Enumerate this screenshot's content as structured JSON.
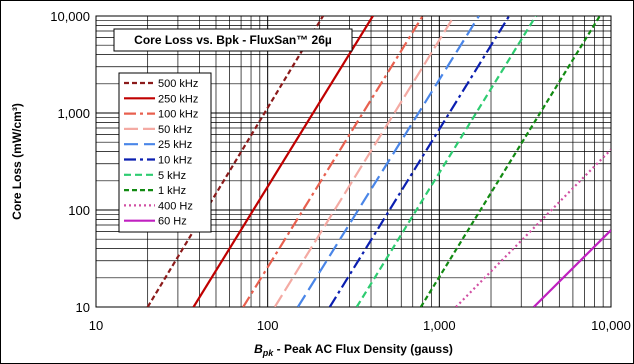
{
  "chart_data": {
    "type": "line",
    "title": "Core Loss vs. Bpk - FluxSan™ 26µ",
    "xlabel_main": "B",
    "xlabel_sub": "pk",
    "xlabel_rest": " - Peak AC Flux Density (gauss)",
    "ylabel": "Core Loss (mW/cm³)",
    "x_scale": "log",
    "y_scale": "log",
    "xlim": [
      10,
      10000
    ],
    "ylim": [
      10,
      10000
    ],
    "x_ticks": [
      "10",
      "100",
      "1,000",
      "10,000"
    ],
    "y_ticks": [
      "10",
      "100",
      "1,000",
      "10,000"
    ],
    "grid": true,
    "legend_position": "left",
    "series": [
      {
        "name": "500 kHz",
        "color": "#8b1a1a",
        "dash": "5,3",
        "points": [
          [
            20,
            10
          ],
          [
            210,
            10000
          ]
        ]
      },
      {
        "name": "250 kHz",
        "color": "#c00000",
        "dash": "",
        "points": [
          [
            37,
            10
          ],
          [
            410,
            10000
          ]
        ]
      },
      {
        "name": "100 kHz",
        "color": "#e8604f",
        "dash": "12,4,3,4",
        "points": [
          [
            72,
            10
          ],
          [
            800,
            10000
          ]
        ]
      },
      {
        "name": "50 kHz",
        "color": "#f4aaa3",
        "dash": "14,5",
        "points": [
          [
            110,
            10
          ],
          [
            1220,
            10000
          ]
        ]
      },
      {
        "name": "25 kHz",
        "color": "#4a86e8",
        "dash": "14,6",
        "points": [
          [
            150,
            10
          ],
          [
            1700,
            10000
          ]
        ]
      },
      {
        "name": "10 kHz",
        "color": "#0b1fb0",
        "dash": "12,4,3,4",
        "points": [
          [
            230,
            10
          ],
          [
            2550,
            10000
          ]
        ]
      },
      {
        "name": "5 kHz",
        "color": "#2ecc71",
        "dash": "7,4",
        "points": [
          [
            330,
            10
          ],
          [
            3650,
            10000
          ]
        ]
      },
      {
        "name": "1 kHz",
        "color": "#128a12",
        "dash": "5,3",
        "points": [
          [
            780,
            10
          ],
          [
            8600,
            10000
          ]
        ]
      },
      {
        "name": "400 Hz",
        "color": "#d14fa3",
        "dash": "2,3",
        "points": [
          [
            1250,
            10
          ],
          [
            10000,
            420
          ]
        ]
      },
      {
        "name": "60 Hz",
        "color": "#c020c0",
        "dash": "",
        "points": [
          [
            3550,
            10
          ],
          [
            10000,
            62
          ]
        ]
      }
    ]
  }
}
